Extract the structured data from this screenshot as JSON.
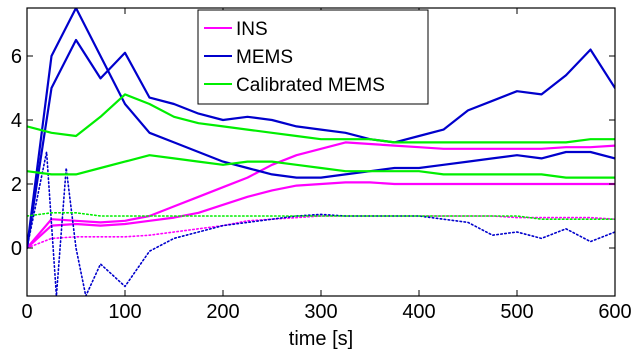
{
  "chart_data": {
    "type": "line",
    "xlabel": "time [s]",
    "ylabel": "",
    "xlim": [
      0,
      600
    ],
    "ylim": [
      -1.5,
      7.5
    ],
    "xticks": [
      0,
      100,
      200,
      300,
      400,
      500,
      600
    ],
    "yticks": [
      0,
      2,
      4,
      6
    ],
    "xtick_labels": [
      "0",
      "100",
      "200",
      "300",
      "400",
      "500",
      "600"
    ],
    "ytick_labels": [
      "0",
      "2",
      "4",
      "6"
    ],
    "grid": false,
    "legend_position": "top-center",
    "legend": [
      "INS",
      "MEMS",
      "Calibrated MEMS"
    ],
    "colors": {
      "INS": "#ff00ff",
      "MEMS": "#0000cc",
      "Calibrated MEMS": "#00ee00"
    },
    "series": [
      {
        "name": "INS",
        "color": "#ff00ff",
        "style": "solid",
        "x": [
          0,
          25,
          50,
          75,
          100,
          125,
          150,
          175,
          200,
          225,
          250,
          275,
          300,
          325,
          350,
          375,
          400,
          425,
          450,
          475,
          500,
          525,
          550,
          575,
          600
        ],
        "y": [
          0,
          0.9,
          0.85,
          0.8,
          0.85,
          1.0,
          1.3,
          1.6,
          1.9,
          2.2,
          2.6,
          2.9,
          3.1,
          3.3,
          3.25,
          3.2,
          3.15,
          3.1,
          3.1,
          3.1,
          3.1,
          3.1,
          3.15,
          3.15,
          3.2
        ]
      },
      {
        "name": "INS",
        "color": "#ff00ff",
        "style": "solid",
        "x": [
          0,
          25,
          50,
          75,
          100,
          125,
          150,
          175,
          200,
          225,
          250,
          275,
          300,
          325,
          350,
          375,
          400,
          425,
          450,
          475,
          500,
          525,
          550,
          575,
          600
        ],
        "y": [
          0,
          0.7,
          0.75,
          0.7,
          0.75,
          0.85,
          0.95,
          1.1,
          1.35,
          1.6,
          1.8,
          1.95,
          2.0,
          2.05,
          2.05,
          2.0,
          2.0,
          2.0,
          2.0,
          2.0,
          2.0,
          2.0,
          2.0,
          2.0,
          2.0
        ]
      },
      {
        "name": "INS",
        "color": "#ff00ff",
        "style": "dotted",
        "x": [
          0,
          25,
          50,
          75,
          100,
          125,
          150,
          175,
          200,
          225,
          250,
          275,
          300,
          325,
          350,
          375,
          400,
          425,
          450,
          475,
          500,
          525,
          550,
          575,
          600
        ],
        "y": [
          0,
          0.3,
          0.35,
          0.35,
          0.35,
          0.4,
          0.5,
          0.6,
          0.7,
          0.85,
          0.9,
          0.95,
          1.0,
          1.0,
          1.0,
          1.0,
          1.0,
          1.0,
          1.0,
          1.0,
          0.95,
          0.95,
          0.95,
          0.95,
          0.9
        ]
      },
      {
        "name": "MEMS",
        "color": "#0000cc",
        "style": "solid",
        "x": [
          0,
          25,
          50,
          75,
          100,
          125,
          150,
          175,
          200,
          225,
          250,
          275,
          300,
          325,
          350,
          375,
          400,
          425,
          450,
          475,
          500,
          525,
          550,
          575,
          600
        ],
        "y": [
          0,
          5.0,
          6.5,
          5.3,
          6.1,
          4.7,
          4.5,
          4.2,
          4.0,
          4.1,
          4.0,
          3.8,
          3.7,
          3.6,
          3.4,
          3.3,
          3.5,
          3.7,
          4.3,
          4.6,
          4.9,
          4.8,
          5.4,
          6.2,
          5.0
        ]
      },
      {
        "name": "MEMS",
        "color": "#0000cc",
        "style": "solid",
        "x": [
          0,
          25,
          50,
          75,
          100,
          125,
          150,
          175,
          200,
          225,
          250,
          275,
          300,
          325,
          350,
          375,
          400,
          425,
          450,
          475,
          500,
          525,
          550,
          575,
          600
        ],
        "y": [
          0,
          6.0,
          7.5,
          6.0,
          4.5,
          3.6,
          3.3,
          3.0,
          2.7,
          2.5,
          2.3,
          2.2,
          2.2,
          2.3,
          2.4,
          2.5,
          2.5,
          2.6,
          2.7,
          2.8,
          2.9,
          2.8,
          3.0,
          3.0,
          2.8
        ]
      },
      {
        "name": "MEMS",
        "color": "#0000cc",
        "style": "dotted",
        "x": [
          0,
          10,
          20,
          30,
          40,
          50,
          60,
          75,
          100,
          125,
          150,
          175,
          200,
          225,
          250,
          275,
          300,
          325,
          350,
          375,
          400,
          425,
          450,
          475,
          500,
          525,
          550,
          575,
          600
        ],
        "y": [
          0,
          1.5,
          3.0,
          -1.5,
          2.5,
          0.0,
          -1.5,
          -0.5,
          -1.2,
          -0.1,
          0.3,
          0.5,
          0.7,
          0.8,
          0.9,
          1.0,
          1.05,
          1.0,
          1.0,
          1.0,
          1.0,
          0.9,
          0.8,
          0.4,
          0.5,
          0.3,
          0.6,
          0.2,
          0.5
        ]
      },
      {
        "name": "Calibrated MEMS",
        "color": "#00ee00",
        "style": "solid",
        "x": [
          0,
          25,
          50,
          75,
          100,
          125,
          150,
          175,
          200,
          225,
          250,
          275,
          300,
          325,
          350,
          375,
          400,
          425,
          450,
          475,
          500,
          525,
          550,
          575,
          600
        ],
        "y": [
          3.8,
          3.6,
          3.5,
          4.1,
          4.8,
          4.5,
          4.1,
          3.9,
          3.8,
          3.7,
          3.6,
          3.5,
          3.4,
          3.4,
          3.4,
          3.3,
          3.3,
          3.3,
          3.3,
          3.3,
          3.3,
          3.3,
          3.3,
          3.4,
          3.4
        ]
      },
      {
        "name": "Calibrated MEMS",
        "color": "#00ee00",
        "style": "solid",
        "x": [
          0,
          25,
          50,
          75,
          100,
          125,
          150,
          175,
          200,
          225,
          250,
          275,
          300,
          325,
          350,
          375,
          400,
          425,
          450,
          475,
          500,
          525,
          550,
          575,
          600
        ],
        "y": [
          2.4,
          2.3,
          2.3,
          2.5,
          2.7,
          2.9,
          2.8,
          2.7,
          2.6,
          2.7,
          2.7,
          2.6,
          2.5,
          2.4,
          2.4,
          2.4,
          2.4,
          2.3,
          2.3,
          2.3,
          2.3,
          2.3,
          2.2,
          2.2,
          2.2
        ]
      },
      {
        "name": "Calibrated MEMS",
        "color": "#00ee00",
        "style": "dotted",
        "x": [
          0,
          25,
          50,
          75,
          100,
          125,
          150,
          175,
          200,
          225,
          250,
          275,
          300,
          325,
          350,
          375,
          400,
          425,
          450,
          475,
          500,
          525,
          550,
          575,
          600
        ],
        "y": [
          1.0,
          1.1,
          1.1,
          1.0,
          1.0,
          1.0,
          1.0,
          1.0,
          1.0,
          1.0,
          1.0,
          1.0,
          1.0,
          1.0,
          1.0,
          1.0,
          1.0,
          1.0,
          1.0,
          1.0,
          1.0,
          0.9,
          0.9,
          0.9,
          0.9
        ]
      }
    ]
  }
}
